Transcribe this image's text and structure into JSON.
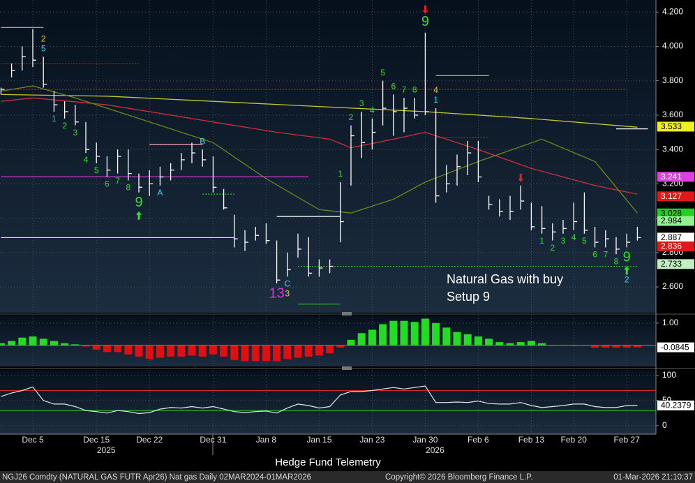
{
  "chart_data": [
    {
      "type": "ohlc",
      "bar_color": "#ffffff",
      "high": [
        3.76,
        3.9,
        4.0,
        4.1,
        3.94,
        3.74,
        3.68,
        3.66,
        3.56,
        3.44,
        3.36,
        3.4,
        3.4,
        3.26,
        3.28,
        3.3,
        3.32,
        3.38,
        3.44,
        3.4,
        3.36,
        3.17,
        3.02,
        2.93,
        2.95,
        2.97,
        2.87,
        2.8,
        2.91,
        2.89,
        2.76,
        2.76,
        3.21,
        3.54,
        3.62,
        3.58,
        3.8,
        3.72,
        3.7,
        3.7,
        4.08,
        3.64,
        3.31,
        3.37,
        3.45,
        3.45,
        3.13,
        3.11,
        3.13,
        3.19,
        3.09,
        3.07,
        2.97,
        2.99,
        3.09,
        3.15,
        2.95,
        2.93,
        2.89,
        2.91,
        2.95
      ],
      "low": [
        3.72,
        3.82,
        3.86,
        3.88,
        3.76,
        3.62,
        3.58,
        3.54,
        3.38,
        3.32,
        3.24,
        3.26,
        3.22,
        3.15,
        3.13,
        3.19,
        3.22,
        3.28,
        3.32,
        3.3,
        3.15,
        3.05,
        2.83,
        2.81,
        2.87,
        2.85,
        2.62,
        2.66,
        2.77,
        2.66,
        2.66,
        2.68,
        2.86,
        3.19,
        3.35,
        3.4,
        3.54,
        3.48,
        3.5,
        3.58,
        3.6,
        3.09,
        3.15,
        3.19,
        3.25,
        3.21,
        3.05,
        3.01,
        2.99,
        3.05,
        2.93,
        2.91,
        2.87,
        2.91,
        2.93,
        2.91,
        2.83,
        2.83,
        2.79,
        2.83,
        2.87
      ],
      "close": [
        3.75,
        3.86,
        3.94,
        3.92,
        3.78,
        3.66,
        3.62,
        3.56,
        3.4,
        3.36,
        3.28,
        3.36,
        3.26,
        3.18,
        3.2,
        3.24,
        3.28,
        3.34,
        3.38,
        3.34,
        3.18,
        3.06,
        2.88,
        2.86,
        2.9,
        2.87,
        2.64,
        2.7,
        2.82,
        2.68,
        2.71,
        2.72,
        2.98,
        3.48,
        3.44,
        3.5,
        3.64,
        3.62,
        3.64,
        3.6,
        3.62,
        3.13,
        3.2,
        3.3,
        3.38,
        3.24,
        3.08,
        3.04,
        3.04,
        3.1,
        2.95,
        2.94,
        2.92,
        2.94,
        2.98,
        2.93,
        2.86,
        2.88,
        2.82,
        2.86,
        2.887
      ],
      "ylim": [
        2.45,
        4.27
      ],
      "yticks": [
        {
          "value": 4.2,
          "label": "4.200"
        },
        {
          "value": 4.0,
          "label": "4.000"
        },
        {
          "value": 3.8,
          "label": "3.800"
        },
        {
          "value": 3.6,
          "label": "3.600"
        },
        {
          "value": 3.4,
          "label": "3.400"
        },
        {
          "value": 3.2,
          "label": "3.200"
        },
        {
          "value": 3.0,
          "label": "3.000"
        },
        {
          "value": 2.8,
          "label": "2.800"
        },
        {
          "value": 2.6,
          "label": "2.600"
        }
      ],
      "grid": true,
      "lines": [
        {
          "color": "#c8c832",
          "x": [
            0,
            10,
            20,
            30,
            40,
            50,
            60
          ],
          "values": [
            3.72,
            3.71,
            3.68,
            3.65,
            3.62,
            3.58,
            3.53
          ]
        },
        {
          "color": "#d0303c",
          "x": [
            0,
            3,
            10,
            16,
            20,
            26,
            31,
            33,
            37,
            40,
            45,
            50,
            56,
            60
          ],
          "values": [
            3.68,
            3.7,
            3.66,
            3.6,
            3.56,
            3.5,
            3.46,
            3.41,
            3.46,
            3.5,
            3.4,
            3.29,
            3.19,
            3.14
          ]
        },
        {
          "color": "#6a8a1a",
          "x": [
            0,
            3,
            7,
            13,
            20,
            25,
            30,
            33,
            37,
            40,
            45,
            51,
            56,
            60
          ],
          "values": [
            3.74,
            3.77,
            3.7,
            3.58,
            3.44,
            3.23,
            3.05,
            3.03,
            3.11,
            3.21,
            3.33,
            3.46,
            3.33,
            3.03
          ]
        }
      ],
      "levels": [
        {
          "value": 3.241,
          "color": "#e040e0",
          "dash": false,
          "x": [
            0,
            29
          ]
        },
        {
          "value": 3.9,
          "color": "#d02020",
          "dash": true,
          "x": [
            0,
            13
          ]
        },
        {
          "value": 3.75,
          "color": "#d02020",
          "dash": true,
          "x": [
            0,
            59
          ]
        },
        {
          "value": 3.83,
          "color": "#ff9fb0",
          "dash": false,
          "x": [
            41,
            46
          ]
        },
        {
          "value": 3.47,
          "color": "#d02020",
          "dash": true,
          "x": [
            41,
            46
          ]
        },
        {
          "value": 2.887,
          "color": "#e8e890",
          "dash": false,
          "x": [
            0,
            22
          ]
        },
        {
          "value": 2.72,
          "color": "#30c030",
          "dash": true,
          "x": [
            28,
            60
          ]
        },
        {
          "value": 2.5,
          "color": "#30c030",
          "dash": false,
          "x": [
            28,
            32
          ]
        },
        {
          "value": 3.01,
          "color": "#ffffff",
          "dash": false,
          "x": [
            26,
            32
          ]
        },
        {
          "value": 3.14,
          "color": "#30c030",
          "dash": true,
          "x": [
            19,
            22
          ]
        },
        {
          "value": 4.11,
          "color": "#30d0d0",
          "dash": false,
          "x": [
            0,
            4
          ]
        },
        {
          "value": 3.43,
          "color": "#ffb0c0",
          "dash": false,
          "x": [
            14,
            19
          ]
        },
        {
          "value": 3.52,
          "color": "#ffffff",
          "dash": false,
          "x": [
            58,
            61
          ]
        }
      ],
      "value_boxes": [
        {
          "value": 3.533,
          "color": "#f0f020",
          "text_color": "#000000"
        },
        {
          "value": 3.241,
          "color": "#e040e0",
          "text_color": "#ffffff"
        },
        {
          "value": 3.127,
          "color": "#e01818",
          "text_color": "#ffffff"
        },
        {
          "value": 3.028,
          "color": "#22d022",
          "text_color": "#000000"
        },
        {
          "value": 2.984,
          "color": "#90f090",
          "text_color": "#000000"
        },
        {
          "value": 2.887,
          "color": "#ffffff",
          "text_color": "#000000"
        },
        {
          "value": 2.836,
          "color": "#e01818",
          "text_color": "#ffffff"
        },
        {
          "value": 2.733,
          "color": "#c0f0c0",
          "text_color": "#000000"
        }
      ],
      "annotations": [
        {
          "bar": 5,
          "text": "1",
          "color": "#33dd33",
          "where": "below",
          "large": false
        },
        {
          "bar": 6,
          "text": "2",
          "color": "#33dd33",
          "where": "below",
          "large": false
        },
        {
          "bar": 7,
          "text": "3",
          "color": "#33dd33",
          "where": "below",
          "large": false
        },
        {
          "bar": 8,
          "text": "4",
          "color": "#33dd33",
          "where": "below",
          "large": false
        },
        {
          "bar": 9,
          "text": "5",
          "color": "#33dd33",
          "where": "below",
          "large": false
        },
        {
          "bar": 10,
          "text": "6",
          "color": "#33dd33",
          "where": "below",
          "large": false
        },
        {
          "bar": 11,
          "text": "7",
          "color": "#33dd33",
          "where": "below",
          "large": false
        },
        {
          "bar": 12,
          "text": "8",
          "color": "#33dd33",
          "where": "below",
          "large": false
        },
        {
          "bar": 13,
          "text": "9",
          "color": "#33dd33",
          "where": "below",
          "large": true
        },
        {
          "bar": 4,
          "text": "5",
          "color": "#40d8e8",
          "where": "above",
          "large": false
        },
        {
          "bar": 4,
          "text": "2",
          "color": "#f0d020",
          "where": "above",
          "large": false
        },
        {
          "bar": 15,
          "text": "A",
          "color": "#40d8e8",
          "where": "below",
          "large": false
        },
        {
          "bar": 19,
          "text": "B",
          "color": "#40d8e8",
          "where": "above",
          "large": false
        },
        {
          "bar": 27,
          "text": "C",
          "color": "#40d8e8",
          "where": "below",
          "large": false
        },
        {
          "bar": 27,
          "text": "3",
          "color": "#f0d020",
          "where": "below",
          "large": false
        },
        {
          "bar": 26,
          "text": "13",
          "color": "#e030e0",
          "where": "below",
          "large": true
        },
        {
          "bar": 32,
          "text": "1",
          "color": "#33dd33",
          "where": "above",
          "large": false
        },
        {
          "bar": 33,
          "text": "2",
          "color": "#33dd33",
          "where": "above",
          "large": false
        },
        {
          "bar": 34,
          "text": "3",
          "color": "#33dd33",
          "where": "above",
          "large": false
        },
        {
          "bar": 35,
          "text": "4",
          "color": "#33dd33",
          "where": "above",
          "large": false
        },
        {
          "bar": 36,
          "text": "5",
          "color": "#33dd33",
          "where": "above",
          "large": false
        },
        {
          "bar": 37,
          "text": "6",
          "color": "#33dd33",
          "where": "above",
          "large": false
        },
        {
          "bar": 38,
          "text": "7",
          "color": "#33dd33",
          "where": "above",
          "large": false
        },
        {
          "bar": 39,
          "text": "8",
          "color": "#33dd33",
          "where": "above",
          "large": false
        },
        {
          "bar": 40,
          "text": "9",
          "color": "#33dd33",
          "where": "above",
          "large": true
        },
        {
          "bar": 41,
          "text": "1",
          "color": "#40d8e8",
          "where": "above",
          "large": false
        },
        {
          "bar": 41,
          "text": "4",
          "color": "#f0d020",
          "where": "above",
          "large": false
        },
        {
          "bar": 51,
          "text": "1",
          "color": "#33dd33",
          "where": "below",
          "large": false
        },
        {
          "bar": 52,
          "text": "2",
          "color": "#33dd33",
          "where": "below",
          "large": false
        },
        {
          "bar": 53,
          "text": "3",
          "color": "#33dd33",
          "where": "below",
          "large": false
        },
        {
          "bar": 54,
          "text": "4",
          "color": "#33dd33",
          "where": "below",
          "large": false
        },
        {
          "bar": 55,
          "text": "5",
          "color": "#33dd33",
          "where": "below",
          "large": false
        },
        {
          "bar": 56,
          "text": "6",
          "color": "#33dd33",
          "where": "below",
          "large": false
        },
        {
          "bar": 57,
          "text": "7",
          "color": "#33dd33",
          "where": "below",
          "large": false
        },
        {
          "bar": 58,
          "text": "8",
          "color": "#33dd33",
          "where": "below",
          "large": false
        },
        {
          "bar": 59,
          "text": "9",
          "color": "#33dd33",
          "where": "below",
          "large": true
        }
      ],
      "arrows": [
        {
          "bar": 13,
          "direction": "up",
          "color": "#33dd33"
        },
        {
          "bar": 40,
          "direction": "down",
          "color": "#e82020"
        },
        {
          "bar": 49,
          "direction": "down",
          "color": "#e82020"
        },
        {
          "bar": 59,
          "direction": "up",
          "color": "#33dd33"
        }
      ],
      "annotations_after_arrows": [
        {
          "bar": 59,
          "text": "2",
          "color": "#40d8e8",
          "where": "below",
          "large": false
        }
      ],
      "note": [
        "Natural Gas with buy",
        "Setup 9"
      ]
    },
    {
      "type": "bar",
      "up_color": "#22dd22",
      "down_color": "#e01010",
      "values": [
        0.1,
        0.2,
        0.35,
        0.4,
        0.3,
        0.2,
        0.1,
        0.05,
        -0.05,
        -0.2,
        -0.3,
        -0.3,
        -0.4,
        -0.5,
        -0.6,
        -0.55,
        -0.5,
        -0.5,
        -0.45,
        -0.5,
        -0.4,
        -0.5,
        -0.65,
        -0.7,
        -0.7,
        -0.7,
        -0.7,
        -0.6,
        -0.55,
        -0.5,
        -0.45,
        -0.35,
        -0.1,
        0.25,
        0.55,
        0.7,
        0.95,
        1.1,
        1.1,
        1.05,
        1.2,
        1.0,
        0.8,
        0.6,
        0.5,
        0.4,
        0.3,
        0.15,
        0.1,
        0.15,
        0.2,
        0.1,
        0,
        0,
        0.02,
        0,
        -0.1,
        -0.1,
        -0.1,
        -0.1,
        -0.0845
      ],
      "ylim": [
        -0.94,
        1.34
      ],
      "yticks": [
        {
          "value": 1,
          "label": "1.00"
        }
      ],
      "grid": true,
      "value_boxes": [
        {
          "value": -0.0845,
          "color": "#ffffff",
          "text_color": "#000000"
        }
      ]
    },
    {
      "type": "line",
      "color": "#e8e8e8",
      "values": [
        58,
        65,
        70,
        77,
        50,
        43,
        43,
        38,
        30,
        28,
        25,
        30,
        28,
        24,
        26,
        33,
        36,
        35,
        38,
        35,
        38,
        33,
        28,
        26,
        28,
        29,
        25,
        35,
        43,
        40,
        35,
        38,
        61,
        68,
        68,
        70,
        73,
        76,
        73,
        76,
        79,
        46,
        46,
        47,
        46,
        49,
        44,
        43,
        43,
        46,
        40,
        36,
        38,
        40,
        43,
        43,
        38,
        36,
        36,
        40,
        40.2379
      ],
      "ylim": [
        -17,
        111
      ],
      "yticks": [
        100,
        50,
        0
      ],
      "grid": true,
      "levels": [
        {
          "value": 70,
          "color": "#d02828"
        },
        {
          "value": 30,
          "color": "#28c828"
        }
      ],
      "value_boxes": [
        {
          "value": 40.2379,
          "color": "#ffffff",
          "text_color": "#000000"
        }
      ]
    }
  ],
  "x_axis": {
    "categories": [
      null,
      null,
      null,
      "Dec 5",
      null,
      null,
      null,
      null,
      null,
      "Dec 15",
      null,
      null,
      null,
      null,
      "Dec 22",
      null,
      null,
      null,
      null,
      null,
      "Dec 31",
      null,
      null,
      null,
      null,
      "Jan 8",
      null,
      null,
      null,
      null,
      "Jan 15",
      null,
      null,
      null,
      null,
      "Jan 23",
      null,
      null,
      null,
      null,
      "Jan 30",
      null,
      null,
      null,
      null,
      "Feb 6",
      null,
      null,
      null,
      null,
      "Feb 13",
      null,
      null,
      null,
      "Feb 20",
      null,
      null,
      null,
      null,
      "Feb 27",
      null
    ],
    "years": [
      {
        "text": "2025",
        "at": 9
      },
      {
        "text": "2026",
        "at": 40
      }
    ]
  },
  "caption": "Hedge Fund Telemetry",
  "footer": {
    "left": "NGJ26 Comdty (NATURAL GAS FUTR  Apr26) Nat gas Daily 02MAR2024-01MAR2026",
    "center": "Copyright© 2026 Bloomberg Finance L.P.",
    "right": "01-Mar-2026 21:10:37"
  }
}
